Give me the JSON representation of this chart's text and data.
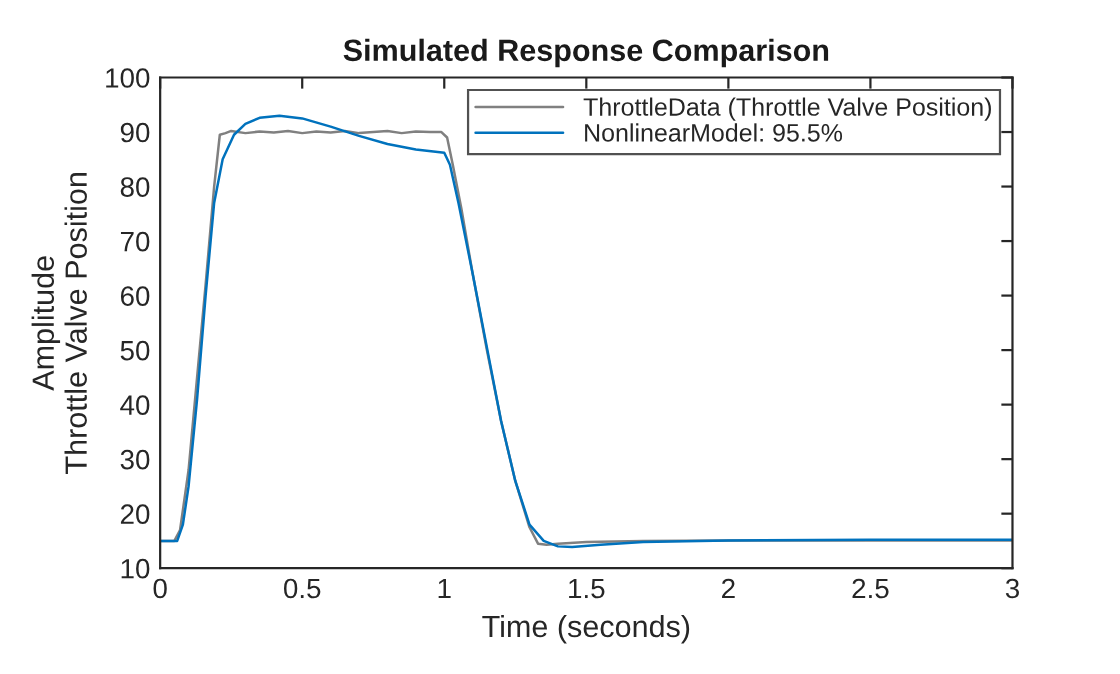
{
  "chart_data": {
    "type": "line",
    "title": "Simulated Response Comparison",
    "xlabel": "Time (seconds)",
    "ylabel": "Amplitude\nThrottle Valve Position",
    "xlim": [
      0,
      3
    ],
    "xticks": [
      0,
      0.5,
      1,
      1.5,
      2,
      2.5,
      3
    ],
    "ylim": [
      10,
      100
    ],
    "yticks": [
      10,
      20,
      30,
      40,
      50,
      60,
      70,
      80,
      90,
      100
    ],
    "grid": false,
    "legend": "top right",
    "series": [
      {
        "name": "ThrottleData (Throttle Valve Position)",
        "color": "#808080",
        "x": [
          0,
          0.05,
          0.07,
          0.1,
          0.13,
          0.16,
          0.19,
          0.21,
          0.23,
          0.25,
          0.3,
          0.35,
          0.4,
          0.45,
          0.5,
          0.55,
          0.6,
          0.65,
          0.7,
          0.75,
          0.8,
          0.85,
          0.9,
          0.95,
          0.99,
          1.01,
          1.03,
          1.06,
          1.1,
          1.15,
          1.2,
          1.25,
          1.3,
          1.33,
          1.36,
          1.4,
          1.5,
          1.7,
          2,
          2.5,
          3
        ],
        "values": [
          15,
          15,
          17,
          28,
          45,
          62,
          80,
          89.5,
          89.8,
          90.2,
          89.8,
          90.1,
          89.9,
          90.2,
          89.8,
          90.1,
          89.9,
          90.2,
          89.8,
          90,
          90.2,
          89.8,
          90.1,
          90,
          90,
          89,
          84,
          76,
          64,
          50,
          37,
          26,
          17.5,
          14.5,
          14.3,
          14.5,
          14.8,
          15,
          15.1,
          15.1,
          15.1
        ]
      },
      {
        "name": "NonlinearModel: 95.5%",
        "color": "#0072bd",
        "x": [
          0,
          0.06,
          0.08,
          0.1,
          0.13,
          0.16,
          0.19,
          0.22,
          0.26,
          0.3,
          0.35,
          0.42,
          0.5,
          0.6,
          0.7,
          0.8,
          0.9,
          1.0,
          1.02,
          1.05,
          1.1,
          1.15,
          1.2,
          1.25,
          1.3,
          1.35,
          1.4,
          1.45,
          1.55,
          1.7,
          2,
          2.5,
          3
        ],
        "values": [
          15,
          15,
          18,
          25,
          41,
          60,
          77,
          85,
          89.5,
          91.5,
          92.6,
          93,
          92.5,
          91,
          89.3,
          87.8,
          86.8,
          86.2,
          84,
          77,
          64,
          50.5,
          37,
          26,
          18,
          15,
          14,
          13.9,
          14.3,
          14.8,
          15.1,
          15.2,
          15.2
        ]
      }
    ]
  }
}
